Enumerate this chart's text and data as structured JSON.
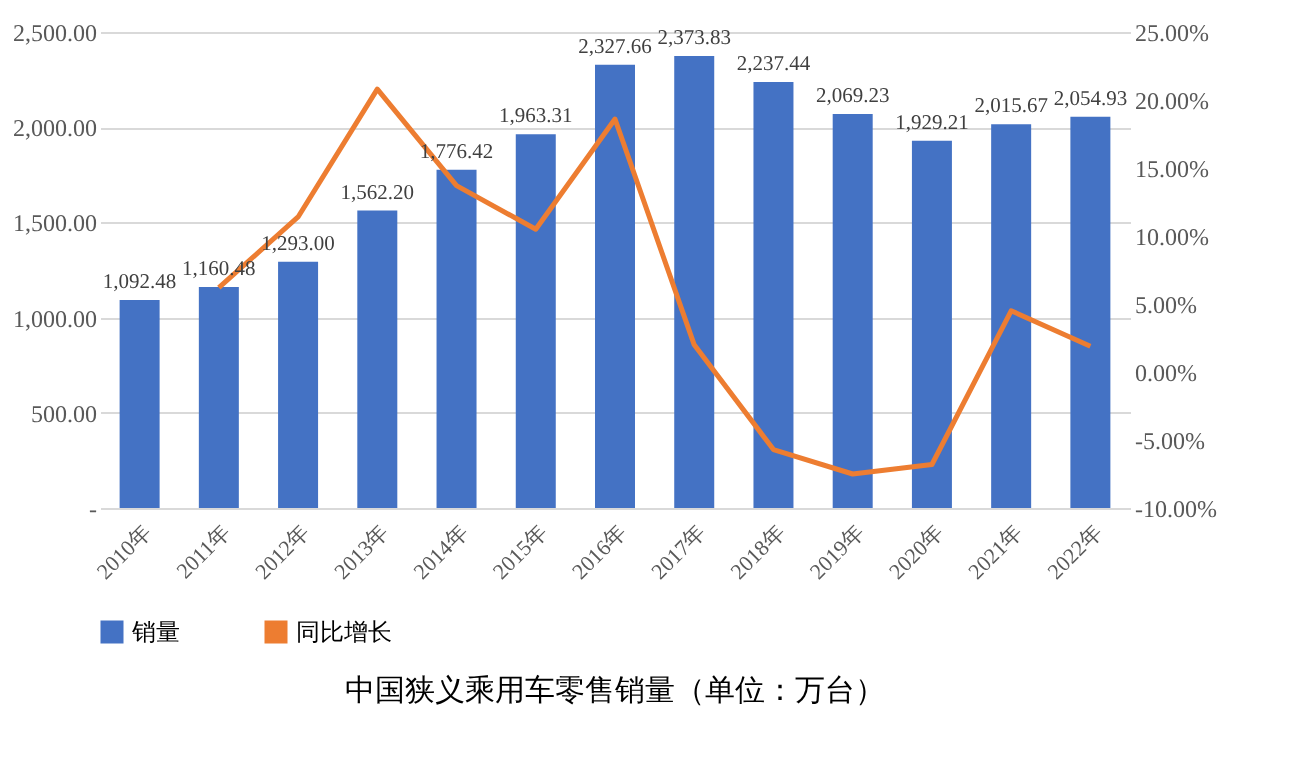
{
  "chart_data": {
    "type": "bar",
    "title": "中国狭义乘用车零售销量（单位：万台）",
    "categories": [
      "2010年",
      "2011年",
      "2012年",
      "2013年",
      "2014年",
      "2015年",
      "2016年",
      "2017年",
      "2018年",
      "2019年",
      "2020年",
      "2021年",
      "2022年"
    ],
    "series": [
      {
        "name": "销量",
        "type": "bar",
        "color": "#4472c4",
        "values": [
          1092.48,
          1160.48,
          1293.0,
          1562.2,
          1776.42,
          1963.31,
          2327.66,
          2373.83,
          2237.44,
          2069.23,
          1929.21,
          2015.67,
          2054.93
        ],
        "value_labels": [
          "1,092.48",
          "1,160.48",
          "1,293.00",
          "1,562.20",
          "1,776.42",
          "1,963.31",
          "2,327.66",
          "2,373.83",
          "2,237.44",
          "2,069.23",
          "1,929.21",
          "2,015.67",
          "2,054.93"
        ]
      },
      {
        "name": "同比增长",
        "type": "line",
        "axis": "y2",
        "color": "#ed7d31",
        "values": [
          null,
          6.2,
          11.4,
          20.8,
          13.7,
          10.5,
          18.6,
          2.0,
          -5.7,
          -7.5,
          -6.8,
          4.5,
          1.9
        ]
      }
    ],
    "ylim": [
      0,
      2500
    ],
    "yticks": [
      {
        "value": 0,
        "label": "-"
      },
      {
        "value": 500,
        "label": "500.00"
      },
      {
        "value": 1000,
        "label": "1,000.00"
      },
      {
        "value": 1500,
        "label": "1,500.00"
      },
      {
        "value": 2000,
        "label": "2,000.00"
      },
      {
        "value": 2500,
        "label": "2,500.00"
      }
    ],
    "y2lim": [
      -10,
      25
    ],
    "y2ticks": [
      {
        "value": -10,
        "label": "-10.00%"
      },
      {
        "value": -5,
        "label": "-5.00%"
      },
      {
        "value": 0,
        "label": "0.00%"
      },
      {
        "value": 5,
        "label": "5.00%"
      },
      {
        "value": 10,
        "label": "10.00%"
      },
      {
        "value": 15,
        "label": "15.00%"
      },
      {
        "value": 20,
        "label": "20.00%"
      },
      {
        "value": 25,
        "label": "25.00%"
      }
    ],
    "grid": "y",
    "legend": "bottom",
    "marker": "none",
    "line_style": "solid"
  }
}
